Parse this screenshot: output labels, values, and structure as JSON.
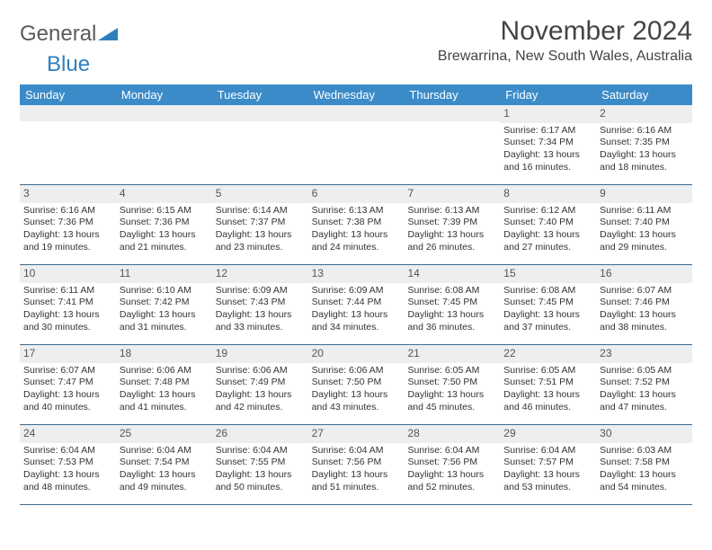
{
  "brand": {
    "part1": "General",
    "part2": "Blue"
  },
  "colors": {
    "header_bg": "#3b8bc9",
    "header_text": "#ffffff",
    "daynum_bg": "#eceef0",
    "week_border": "#3b6a8f",
    "logo_blue": "#2f7fbd",
    "text": "#333333"
  },
  "title": "November 2024",
  "location": "Brewarrina, New South Wales, Australia",
  "weekdays": [
    "Sunday",
    "Monday",
    "Tuesday",
    "Wednesday",
    "Thursday",
    "Friday",
    "Saturday"
  ],
  "weeks": [
    [
      {
        "blank": true
      },
      {
        "blank": true
      },
      {
        "blank": true
      },
      {
        "blank": true
      },
      {
        "blank": true
      },
      {
        "n": "1",
        "sr": "6:17 AM",
        "ss": "7:34 PM",
        "dl": "13 hours and 16 minutes."
      },
      {
        "n": "2",
        "sr": "6:16 AM",
        "ss": "7:35 PM",
        "dl": "13 hours and 18 minutes."
      }
    ],
    [
      {
        "n": "3",
        "sr": "6:16 AM",
        "ss": "7:36 PM",
        "dl": "13 hours and 19 minutes."
      },
      {
        "n": "4",
        "sr": "6:15 AM",
        "ss": "7:36 PM",
        "dl": "13 hours and 21 minutes."
      },
      {
        "n": "5",
        "sr": "6:14 AM",
        "ss": "7:37 PM",
        "dl": "13 hours and 23 minutes."
      },
      {
        "n": "6",
        "sr": "6:13 AM",
        "ss": "7:38 PM",
        "dl": "13 hours and 24 minutes."
      },
      {
        "n": "7",
        "sr": "6:13 AM",
        "ss": "7:39 PM",
        "dl": "13 hours and 26 minutes."
      },
      {
        "n": "8",
        "sr": "6:12 AM",
        "ss": "7:40 PM",
        "dl": "13 hours and 27 minutes."
      },
      {
        "n": "9",
        "sr": "6:11 AM",
        "ss": "7:40 PM",
        "dl": "13 hours and 29 minutes."
      }
    ],
    [
      {
        "n": "10",
        "sr": "6:11 AM",
        "ss": "7:41 PM",
        "dl": "13 hours and 30 minutes."
      },
      {
        "n": "11",
        "sr": "6:10 AM",
        "ss": "7:42 PM",
        "dl": "13 hours and 31 minutes."
      },
      {
        "n": "12",
        "sr": "6:09 AM",
        "ss": "7:43 PM",
        "dl": "13 hours and 33 minutes."
      },
      {
        "n": "13",
        "sr": "6:09 AM",
        "ss": "7:44 PM",
        "dl": "13 hours and 34 minutes."
      },
      {
        "n": "14",
        "sr": "6:08 AM",
        "ss": "7:45 PM",
        "dl": "13 hours and 36 minutes."
      },
      {
        "n": "15",
        "sr": "6:08 AM",
        "ss": "7:45 PM",
        "dl": "13 hours and 37 minutes."
      },
      {
        "n": "16",
        "sr": "6:07 AM",
        "ss": "7:46 PM",
        "dl": "13 hours and 38 minutes."
      }
    ],
    [
      {
        "n": "17",
        "sr": "6:07 AM",
        "ss": "7:47 PM",
        "dl": "13 hours and 40 minutes."
      },
      {
        "n": "18",
        "sr": "6:06 AM",
        "ss": "7:48 PM",
        "dl": "13 hours and 41 minutes."
      },
      {
        "n": "19",
        "sr": "6:06 AM",
        "ss": "7:49 PM",
        "dl": "13 hours and 42 minutes."
      },
      {
        "n": "20",
        "sr": "6:06 AM",
        "ss": "7:50 PM",
        "dl": "13 hours and 43 minutes."
      },
      {
        "n": "21",
        "sr": "6:05 AM",
        "ss": "7:50 PM",
        "dl": "13 hours and 45 minutes."
      },
      {
        "n": "22",
        "sr": "6:05 AM",
        "ss": "7:51 PM",
        "dl": "13 hours and 46 minutes."
      },
      {
        "n": "23",
        "sr": "6:05 AM",
        "ss": "7:52 PM",
        "dl": "13 hours and 47 minutes."
      }
    ],
    [
      {
        "n": "24",
        "sr": "6:04 AM",
        "ss": "7:53 PM",
        "dl": "13 hours and 48 minutes."
      },
      {
        "n": "25",
        "sr": "6:04 AM",
        "ss": "7:54 PM",
        "dl": "13 hours and 49 minutes."
      },
      {
        "n": "26",
        "sr": "6:04 AM",
        "ss": "7:55 PM",
        "dl": "13 hours and 50 minutes."
      },
      {
        "n": "27",
        "sr": "6:04 AM",
        "ss": "7:56 PM",
        "dl": "13 hours and 51 minutes."
      },
      {
        "n": "28",
        "sr": "6:04 AM",
        "ss": "7:56 PM",
        "dl": "13 hours and 52 minutes."
      },
      {
        "n": "29",
        "sr": "6:04 AM",
        "ss": "7:57 PM",
        "dl": "13 hours and 53 minutes."
      },
      {
        "n": "30",
        "sr": "6:03 AM",
        "ss": "7:58 PM",
        "dl": "13 hours and 54 minutes."
      }
    ]
  ],
  "labels": {
    "sunrise": "Sunrise: ",
    "sunset": "Sunset: ",
    "daylight": "Daylight: "
  }
}
